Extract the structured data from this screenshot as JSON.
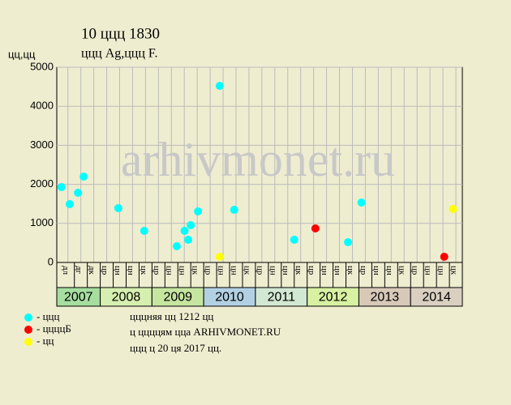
{
  "chart_data": {
    "type": "scatter",
    "title": "10 ццц 1830",
    "subtitle": "ццц Ag,ццц F.",
    "y_label": "цц,цц",
    "watermark": "arhivmonet.ru",
    "xlim": [
      2007.16,
      2015
    ],
    "ylim": [
      0,
      5000
    ],
    "yticks": [
      0,
      1000,
      2000,
      3000,
      4000,
      5000
    ],
    "grid": true,
    "xticks": [
      {
        "value": 2007.375,
        "label": "дл"
      },
      {
        "value": 2007.625,
        "label": "дг"
      },
      {
        "value": 2007.875,
        "label": "дк"
      },
      {
        "value": 2008.125,
        "label": "цр"
      },
      {
        "value": 2008.375,
        "label": "цн"
      },
      {
        "value": 2008.625,
        "label": "цн"
      },
      {
        "value": 2008.875,
        "label": "цк"
      },
      {
        "value": 2009.125,
        "label": "цр"
      },
      {
        "value": 2009.375,
        "label": "цн"
      },
      {
        "value": 2009.625,
        "label": "цн"
      },
      {
        "value": 2009.875,
        "label": "цк"
      },
      {
        "value": 2010.125,
        "label": "цр"
      },
      {
        "value": 2010.375,
        "label": "цн"
      },
      {
        "value": 2010.625,
        "label": "цн"
      },
      {
        "value": 2010.875,
        "label": "цк"
      },
      {
        "value": 2011.125,
        "label": "цр"
      },
      {
        "value": 2011.375,
        "label": "цн"
      },
      {
        "value": 2011.625,
        "label": "цн"
      },
      {
        "value": 2011.875,
        "label": "цк"
      },
      {
        "value": 2012.125,
        "label": "цр"
      },
      {
        "value": 2012.375,
        "label": "цн"
      },
      {
        "value": 2012.625,
        "label": "цн"
      },
      {
        "value": 2012.875,
        "label": "цк"
      },
      {
        "value": 2013.125,
        "label": "цр"
      },
      {
        "value": 2013.375,
        "label": "цн"
      },
      {
        "value": 2013.625,
        "label": "цн"
      },
      {
        "value": 2013.875,
        "label": "цк"
      },
      {
        "value": 2014.125,
        "label": "цр"
      },
      {
        "value": 2014.375,
        "label": "цн"
      },
      {
        "value": 2014.625,
        "label": "цн"
      },
      {
        "value": 2014.875,
        "label": "цк"
      }
    ],
    "years": [
      {
        "value": 2007,
        "label": "2007",
        "color": "#a6dea0"
      },
      {
        "value": 2008,
        "label": "2008",
        "color": "#d6efb0"
      },
      {
        "value": 2009,
        "label": "2009",
        "color": "#c6e6a0"
      },
      {
        "value": 2010,
        "label": "2010",
        "color": "#b2d0e2"
      },
      {
        "value": 2011,
        "label": "2011",
        "color": "#d2e8d2"
      },
      {
        "value": 2012,
        "label": "2012",
        "color": "#d8f0a2"
      },
      {
        "value": 2013,
        "label": "2013",
        "color": "#d8c8b8"
      },
      {
        "value": 2014,
        "label": "2014",
        "color": "#dad0c2"
      }
    ],
    "series": [
      {
        "name": "- ццц",
        "color": "#00ffff",
        "x": [
          2007.25,
          2007.41,
          2007.57,
          2007.68,
          2008.35,
          2008.85,
          2009.48,
          2009.63,
          2009.7,
          2009.75,
          2009.89,
          2010.31,
          2010.59,
          2011.75,
          2012.79,
          2013.05
        ],
        "values": [
          1930,
          1494,
          1784,
          2199,
          1390,
          809,
          415,
          809,
          581,
          954,
          1307,
          4523,
          1349,
          581,
          519,
          1535
        ]
      },
      {
        "name": "- ццццБ",
        "color": "#ff0000",
        "x": [
          2012.16,
          2014.65
        ],
        "values": [
          871,
          145
        ]
      },
      {
        "name": "- цц",
        "color": "#ffff00",
        "x": [
          2010.31,
          2014.82
        ],
        "values": [
          145,
          1369
        ]
      }
    ],
    "notes": [
      "цццняя цц 1212 цц",
      "ц ццццям цца ARHIVMONET.RU",
      "ццц ц 20 ця 2017 цц."
    ]
  }
}
